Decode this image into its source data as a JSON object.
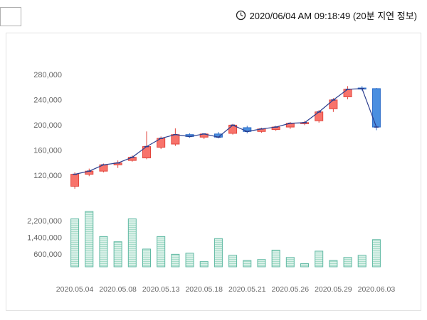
{
  "header": {
    "icon": "clock-icon",
    "timestamp": "2020/06/04 AM 09:18:49 (20분 지연 정보)"
  },
  "chart_data": {
    "type": "candlestick_with_volume",
    "title": "",
    "price_axis": {
      "ticks": [
        280000,
        240000,
        200000,
        160000,
        120000
      ]
    },
    "volume_axis": {
      "ticks": [
        2200000,
        1400000,
        600000
      ]
    },
    "x_ticks": [
      {
        "index": 0,
        "label": "2020.05.04"
      },
      {
        "index": 3,
        "label": "2020.05.08"
      },
      {
        "index": 6,
        "label": "2020.05.13"
      },
      {
        "index": 9,
        "label": "2020.05.18"
      },
      {
        "index": 12,
        "label": "2020.05.21"
      },
      {
        "index": 15,
        "label": "2020.05.26"
      },
      {
        "index": 18,
        "label": "2020.05.29"
      },
      {
        "index": 21,
        "label": "2020.06.03"
      }
    ],
    "candles": [
      {
        "date": "2020.05.04",
        "open": 103000,
        "high": 125000,
        "low": 99000,
        "close": 122000,
        "volume": 2300000
      },
      {
        "date": "2020.05.06",
        "open": 122000,
        "high": 131000,
        "low": 119000,
        "close": 127000,
        "volume": 2650000
      },
      {
        "date": "2020.05.07",
        "open": 127000,
        "high": 139000,
        "low": 125000,
        "close": 137000,
        "volume": 1450000
      },
      {
        "date": "2020.05.08",
        "open": 137000,
        "high": 144000,
        "low": 132000,
        "close": 140000,
        "volume": 1200000
      },
      {
        "date": "2020.05.11",
        "open": 144000,
        "high": 152000,
        "low": 142000,
        "close": 149000,
        "volume": 2300000
      },
      {
        "date": "2020.05.12",
        "open": 148000,
        "high": 190000,
        "low": 146000,
        "close": 166000,
        "volume": 850000
      },
      {
        "date": "2020.05.13",
        "open": 165000,
        "high": 182000,
        "low": 162000,
        "close": 179000,
        "volume": 1450000
      },
      {
        "date": "2020.05.14",
        "open": 170000,
        "high": 195000,
        "low": 167000,
        "close": 185000,
        "volume": 600000
      },
      {
        "date": "2020.05.15",
        "open": 185000,
        "high": 187000,
        "low": 180000,
        "close": 182000,
        "volume": 650000
      },
      {
        "date": "2020.05.18",
        "open": 181000,
        "high": 187000,
        "low": 178000,
        "close": 186000,
        "volume": 250000
      },
      {
        "date": "2020.05.19",
        "open": 186000,
        "high": 189000,
        "low": 179000,
        "close": 181000,
        "volume": 1350000
      },
      {
        "date": "2020.05.20",
        "open": 187000,
        "high": 202000,
        "low": 185000,
        "close": 200000,
        "volume": 550000
      },
      {
        "date": "2020.05.21",
        "open": 196000,
        "high": 199000,
        "low": 187000,
        "close": 190000,
        "volume": 300000
      },
      {
        "date": "2020.05.22",
        "open": 190000,
        "high": 196000,
        "low": 188000,
        "close": 194000,
        "volume": 350000
      },
      {
        "date": "2020.05.25",
        "open": 193000,
        "high": 199000,
        "low": 191000,
        "close": 197000,
        "volume": 800000
      },
      {
        "date": "2020.05.26",
        "open": 197000,
        "high": 205000,
        "low": 194000,
        "close": 203000,
        "volume": 450000
      },
      {
        "date": "2020.05.27",
        "open": 203000,
        "high": 207000,
        "low": 200000,
        "close": 204000,
        "volume": 150000
      },
      {
        "date": "2020.05.28",
        "open": 207000,
        "high": 224000,
        "low": 204000,
        "close": 221000,
        "volume": 750000
      },
      {
        "date": "2020.05.29",
        "open": 226000,
        "high": 243000,
        "low": 221000,
        "close": 240000,
        "volume": 300000
      },
      {
        "date": "2020.06.01",
        "open": 245000,
        "high": 262000,
        "low": 241000,
        "close": 257000,
        "volume": 450000
      },
      {
        "date": "2020.06.02",
        "open": 259000,
        "high": 262000,
        "low": 255000,
        "close": 258000,
        "volume": 550000
      },
      {
        "date": "2020.06.03",
        "open": 258000,
        "high": 259000,
        "low": 192000,
        "close": 197000,
        "volume": 1300000
      }
    ],
    "colors": {
      "up_fill": "#f8736b",
      "up_stroke": "#e2453c",
      "down_fill": "#4a8fe0",
      "down_stroke": "#2b6cc8",
      "line": "#2c3f8f",
      "volume_fill": "#d9f0e8",
      "volume_stripe": "#a6dcc8",
      "volume_stroke": "#5fb9a3",
      "axis_text": "#666666",
      "border": "#e2e2e2"
    },
    "legend": null,
    "grid": false
  }
}
